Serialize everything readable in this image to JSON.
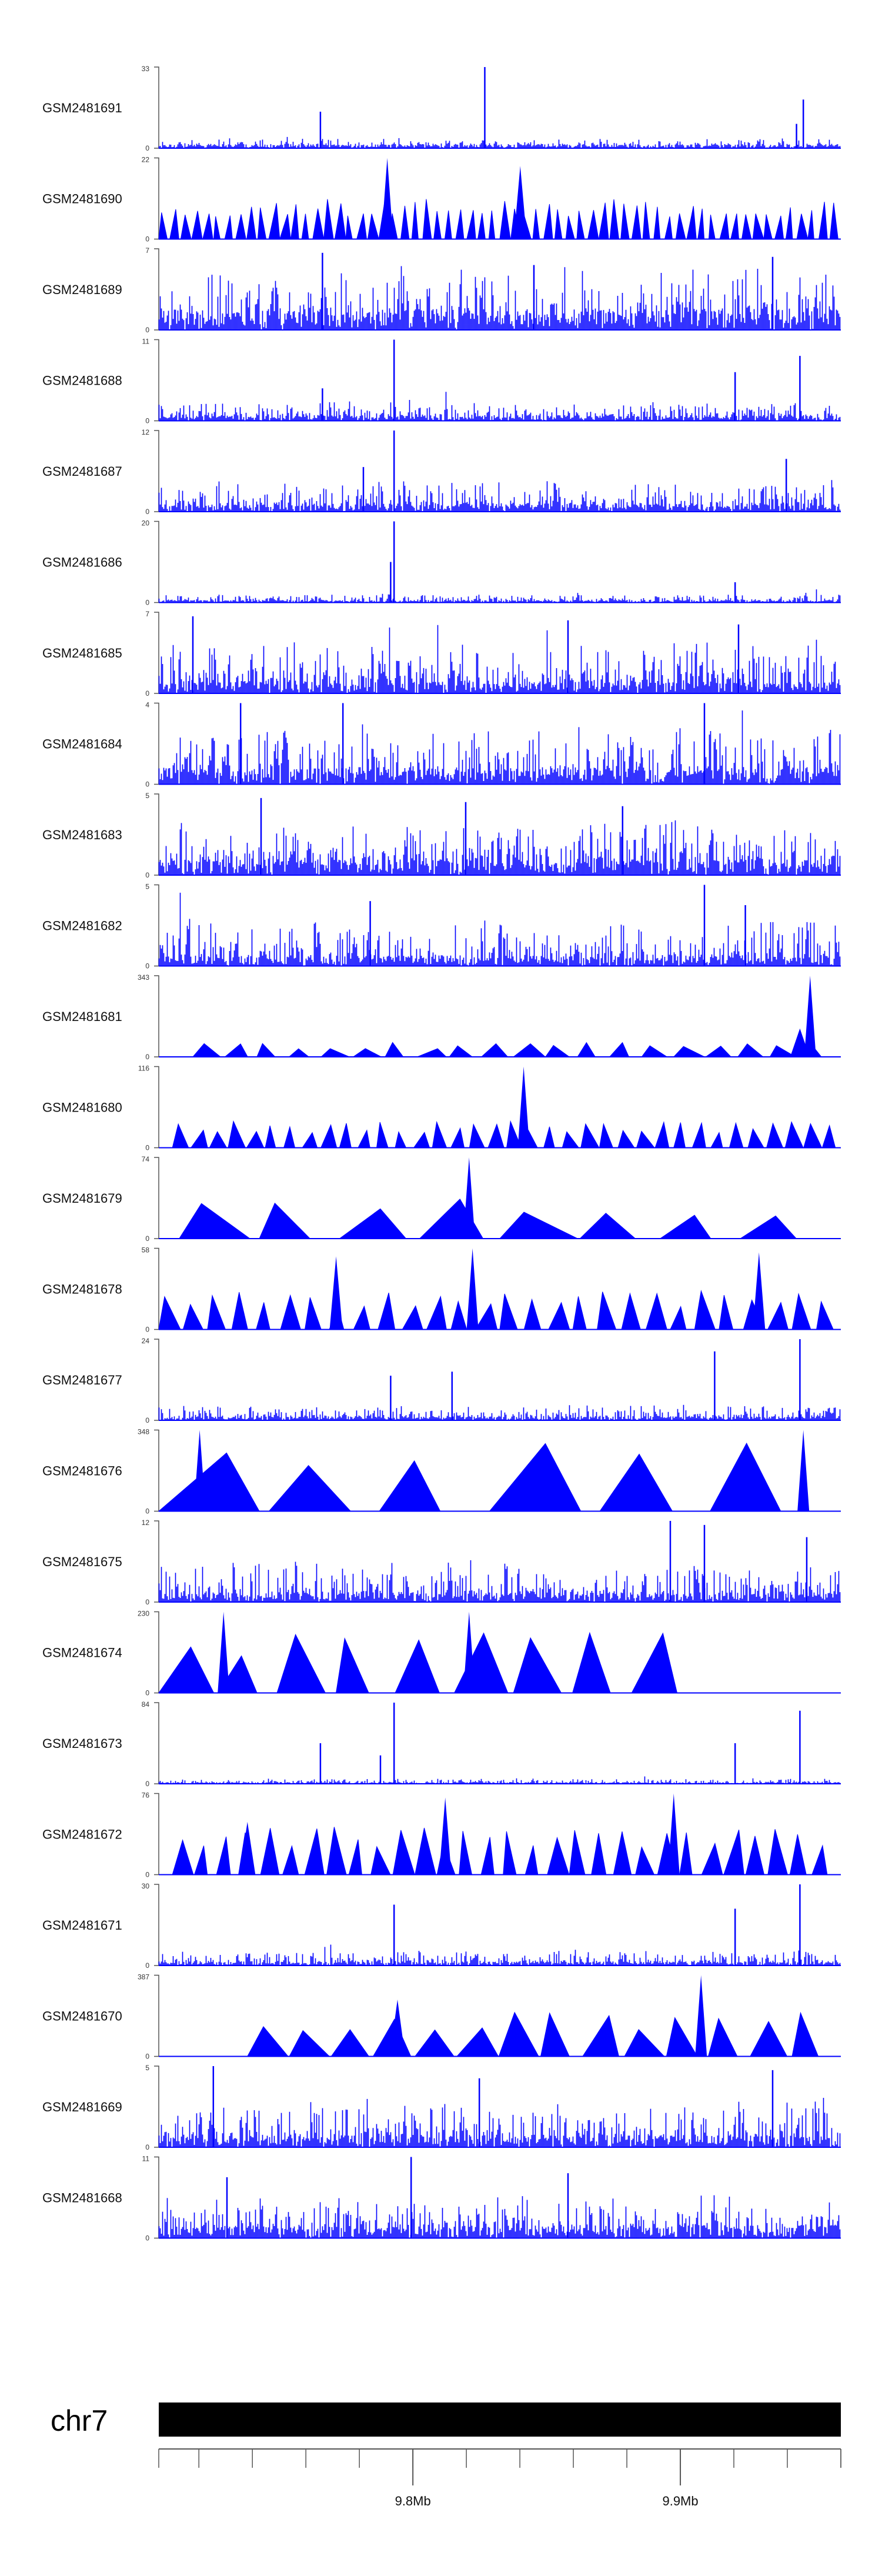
{
  "chart_data": {
    "type": "area",
    "title": "",
    "xlabel": "",
    "ylabel": "",
    "xlim_bp": [
      9705000,
      9960000
    ],
    "x_ticks": [
      {
        "pos_bp": 9800000,
        "label": "9.8Mb"
      },
      {
        "pos_bp": 9900000,
        "label": "9.9Mb"
      }
    ],
    "minor_tick_step_bp": 20000,
    "chromosome": "chr7",
    "colors": {
      "signal": "#0000ff",
      "axis": "#555555",
      "ideogram": "#000000"
    },
    "tracks": [
      {
        "name": "GSM2481691",
        "ymax_label": "33",
        "ymin_label": "0",
        "style": "dense",
        "seed": 11,
        "base": 0.05,
        "noise": 0.08,
        "spikes": [
          {
            "x": 0.478,
            "h": 1.0
          },
          {
            "x": 0.237,
            "h": 0.45
          },
          {
            "x": 0.945,
            "h": 0.6
          },
          {
            "x": 0.935,
            "h": 0.3
          }
        ]
      },
      {
        "name": "GSM2481690",
        "ymax_label": "22",
        "ymin_label": "0",
        "style": "peaks",
        "seed": 12,
        "base": 0.62,
        "noise": 0.35,
        "npeaks": 62,
        "spikes": [
          {
            "x": 0.335,
            "h": 1.0
          },
          {
            "x": 0.53,
            "h": 0.9
          }
        ]
      },
      {
        "name": "GSM2481689",
        "ymax_label": "7",
        "ymin_label": "0",
        "style": "dense",
        "seed": 13,
        "base": 0.25,
        "noise": 0.55,
        "spikes": [
          {
            "x": 0.24,
            "h": 0.95
          },
          {
            "x": 0.9,
            "h": 0.9
          },
          {
            "x": 0.55,
            "h": 0.8
          }
        ]
      },
      {
        "name": "GSM2481688",
        "ymax_label": "11",
        "ymin_label": "0",
        "style": "dense",
        "seed": 14,
        "base": 0.07,
        "noise": 0.18,
        "spikes": [
          {
            "x": 0.345,
            "h": 1.0
          },
          {
            "x": 0.94,
            "h": 0.8
          },
          {
            "x": 0.845,
            "h": 0.6
          },
          {
            "x": 0.24,
            "h": 0.4
          }
        ]
      },
      {
        "name": "GSM2481687",
        "ymax_label": "12",
        "ymin_label": "0",
        "style": "dense",
        "seed": 15,
        "base": 0.1,
        "noise": 0.3,
        "spikes": [
          {
            "x": 0.345,
            "h": 1.0
          },
          {
            "x": 0.3,
            "h": 0.55
          },
          {
            "x": 0.92,
            "h": 0.65
          }
        ]
      },
      {
        "name": "GSM2481686",
        "ymax_label": "20",
        "ymin_label": "0",
        "style": "dense",
        "seed": 16,
        "base": 0.03,
        "noise": 0.08,
        "spikes": [
          {
            "x": 0.345,
            "h": 1.0
          },
          {
            "x": 0.34,
            "h": 0.5
          },
          {
            "x": 0.845,
            "h": 0.25
          }
        ]
      },
      {
        "name": "GSM2481685",
        "ymax_label": "7",
        "ymin_label": "0",
        "style": "dense",
        "seed": 17,
        "base": 0.15,
        "noise": 0.55,
        "spikes": [
          {
            "x": 0.05,
            "h": 0.95
          },
          {
            "x": 0.6,
            "h": 0.9
          },
          {
            "x": 0.85,
            "h": 0.85
          }
        ]
      },
      {
        "name": "GSM2481684",
        "ymax_label": "4",
        "ymin_label": "0",
        "style": "dense",
        "seed": 18,
        "base": 0.2,
        "noise": 0.55,
        "spikes": [
          {
            "x": 0.12,
            "h": 1.0
          },
          {
            "x": 0.27,
            "h": 1.0
          },
          {
            "x": 0.8,
            "h": 1.0
          }
        ]
      },
      {
        "name": "GSM2481683",
        "ymax_label": "5",
        "ymin_label": "0",
        "style": "dense",
        "seed": 19,
        "base": 0.2,
        "noise": 0.5,
        "spikes": [
          {
            "x": 0.15,
            "h": 0.95
          },
          {
            "x": 0.45,
            "h": 0.9
          },
          {
            "x": 0.68,
            "h": 0.85
          }
        ]
      },
      {
        "name": "GSM2481682",
        "ymax_label": "5",
        "ymin_label": "0",
        "style": "dense",
        "seed": 20,
        "base": 0.12,
        "noise": 0.45,
        "spikes": [
          {
            "x": 0.8,
            "h": 1.0
          },
          {
            "x": 0.31,
            "h": 0.8
          },
          {
            "x": 0.86,
            "h": 0.75
          }
        ]
      },
      {
        "name": "GSM2481681",
        "ymax_label": "343",
        "ymin_label": "0",
        "style": "sparse",
        "seed": 21,
        "start": 0.05,
        "end": 0.99,
        "npeaks": 20,
        "ph": 0.18,
        "spikes": [
          {
            "x": 0.955,
            "h": 1.0
          },
          {
            "x": 0.94,
            "h": 0.35
          }
        ]
      },
      {
        "name": "GSM2481680",
        "ymax_label": "116",
        "ymin_label": "0",
        "style": "sparse",
        "seed": 22,
        "start": 0.02,
        "end": 1.0,
        "npeaks": 36,
        "ph": 0.33,
        "spikes": [
          {
            "x": 0.535,
            "h": 1.0
          }
        ]
      },
      {
        "name": "GSM2481679",
        "ymax_label": "74",
        "ymin_label": "0",
        "style": "sparse",
        "seed": 23,
        "start": 0.03,
        "end": 0.97,
        "npeaks": 8,
        "ph": 0.5,
        "spikes": [
          {
            "x": 0.455,
            "h": 1.0
          }
        ]
      },
      {
        "name": "GSM2481678",
        "ymax_label": "58",
        "ymin_label": "0",
        "style": "sparse",
        "seed": 24,
        "start": 0.0,
        "end": 1.0,
        "npeaks": 28,
        "ph": 0.48,
        "spikes": [
          {
            "x": 0.46,
            "h": 1.0
          },
          {
            "x": 0.88,
            "h": 0.95
          },
          {
            "x": 0.26,
            "h": 0.9
          }
        ]
      },
      {
        "name": "GSM2481677",
        "ymax_label": "24",
        "ymin_label": "0",
        "style": "dense",
        "seed": 25,
        "base": 0.05,
        "noise": 0.15,
        "spikes": [
          {
            "x": 0.94,
            "h": 1.0
          },
          {
            "x": 0.815,
            "h": 0.85
          },
          {
            "x": 0.43,
            "h": 0.6
          },
          {
            "x": 0.34,
            "h": 0.55
          }
        ]
      },
      {
        "name": "GSM2481676",
        "ymax_label": "348",
        "ymin_label": "0",
        "style": "sparse",
        "seed": 26,
        "start": 0.0,
        "end": 0.97,
        "npeaks": 6,
        "ph": 0.9,
        "spikes": [
          {
            "x": 0.945,
            "h": 1.0
          },
          {
            "x": 0.06,
            "h": 1.0
          }
        ]
      },
      {
        "name": "GSM2481675",
        "ymax_label": "12",
        "ymin_label": "0",
        "style": "dense",
        "seed": 27,
        "base": 0.12,
        "noise": 0.4,
        "spikes": [
          {
            "x": 0.75,
            "h": 1.0
          },
          {
            "x": 0.8,
            "h": 0.95
          },
          {
            "x": 0.95,
            "h": 0.8
          }
        ]
      },
      {
        "name": "GSM2481674",
        "ymax_label": "230",
        "ymin_label": "0",
        "style": "sparse",
        "seed": 28,
        "start": 0.0,
        "end": 0.78,
        "npeaks": 9,
        "ph": 0.75,
        "spikes": [
          {
            "x": 0.095,
            "h": 1.0
          },
          {
            "x": 0.455,
            "h": 1.0
          }
        ]
      },
      {
        "name": "GSM2481673",
        "ymax_label": "84",
        "ymin_label": "0",
        "style": "dense",
        "seed": 29,
        "base": 0.02,
        "noise": 0.05,
        "spikes": [
          {
            "x": 0.345,
            "h": 1.0
          },
          {
            "x": 0.94,
            "h": 0.9
          },
          {
            "x": 0.845,
            "h": 0.5
          },
          {
            "x": 0.237,
            "h": 0.5
          },
          {
            "x": 0.325,
            "h": 0.35
          }
        ]
      },
      {
        "name": "GSM2481672",
        "ymax_label": "76",
        "ymin_label": "0",
        "style": "sparse",
        "seed": 30,
        "start": 0.02,
        "end": 0.99,
        "npeaks": 30,
        "ph": 0.6,
        "spikes": [
          {
            "x": 0.755,
            "h": 1.0
          },
          {
            "x": 0.42,
            "h": 0.95
          },
          {
            "x": 0.13,
            "h": 0.65
          }
        ]
      },
      {
        "name": "GSM2481671",
        "ymax_label": "30",
        "ymin_label": "0",
        "style": "dense",
        "seed": 31,
        "base": 0.05,
        "noise": 0.15,
        "spikes": [
          {
            "x": 0.94,
            "h": 1.0
          },
          {
            "x": 0.345,
            "h": 0.75
          },
          {
            "x": 0.845,
            "h": 0.7
          }
        ]
      },
      {
        "name": "GSM2481670",
        "ymax_label": "387",
        "ymin_label": "0",
        "style": "sparse",
        "seed": 32,
        "start": 0.13,
        "end": 0.99,
        "npeaks": 14,
        "ph": 0.55,
        "spikes": [
          {
            "x": 0.795,
            "h": 1.0
          },
          {
            "x": 0.35,
            "h": 0.7
          }
        ]
      },
      {
        "name": "GSM2481669",
        "ymax_label": "5",
        "ymin_label": "0",
        "style": "dense",
        "seed": 33,
        "base": 0.15,
        "noise": 0.45,
        "spikes": [
          {
            "x": 0.08,
            "h": 1.0
          },
          {
            "x": 0.9,
            "h": 0.95
          },
          {
            "x": 0.47,
            "h": 0.85
          }
        ]
      },
      {
        "name": "GSM2481668",
        "ymax_label": "11",
        "ymin_label": "0",
        "style": "dense",
        "seed": 34,
        "base": 0.15,
        "noise": 0.4,
        "spikes": [
          {
            "x": 0.37,
            "h": 1.0
          },
          {
            "x": 0.6,
            "h": 0.8
          },
          {
            "x": 0.1,
            "h": 0.75
          }
        ]
      }
    ]
  }
}
